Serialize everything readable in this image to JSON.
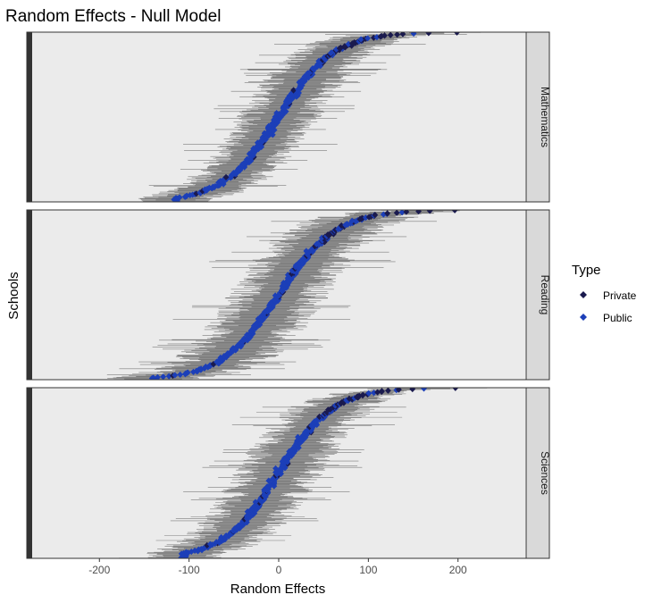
{
  "chart_data": {
    "type": "scatter",
    "subtype": "caterpillar plot (faceted, points with horizontal interval bars)",
    "title": "Random Effects - Null Model",
    "xlabel": "Random Effects",
    "ylabel": "Schools",
    "xlim": [
      -275,
      275
    ],
    "x_ticks": [
      -200,
      -100,
      0,
      100,
      200
    ],
    "x_tick_labels": [
      "-200",
      "-100",
      "0",
      "100",
      "200"
    ],
    "grid": false,
    "legend": {
      "title": "Type",
      "position": "right",
      "entries": [
        {
          "label": "Private",
          "color": "#1a1a4e"
        },
        {
          "label": "Public",
          "color": "#1c3fb8"
        }
      ]
    },
    "facets": [
      {
        "label": "Mathematics",
        "n_schools": 320,
        "effect_min": -115,
        "effect_max": 195,
        "center": 0,
        "spread": 56,
        "ci_half_width": 28,
        "private_share_top": 0.45
      },
      {
        "label": "Reading",
        "n_schools": 320,
        "effect_min": -140,
        "effect_max": 195,
        "center": 0,
        "spread": 58,
        "ci_half_width": 34,
        "private_share_top": 0.45
      },
      {
        "label": "Sciences",
        "n_schools": 320,
        "effect_min": -105,
        "effect_max": 200,
        "center": 0,
        "spread": 55,
        "ci_half_width": 30,
        "private_share_top": 0.45
      }
    ],
    "colors": {
      "panel_background": "#ebebeb",
      "strip_background": "#d9d9d9",
      "interval": "#5a5a5a",
      "private": "#1a1a4e",
      "public": "#1c3fb8"
    }
  }
}
